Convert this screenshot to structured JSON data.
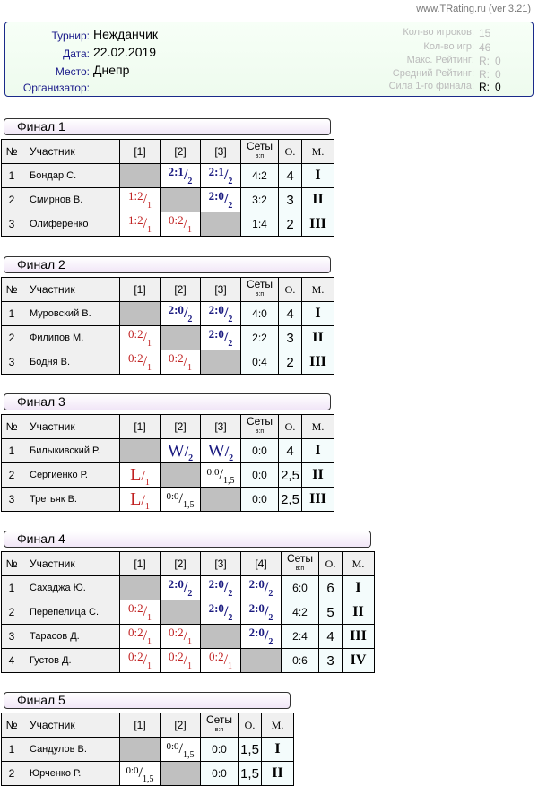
{
  "version": "www.TRating.ru (ver 3.21)",
  "info": {
    "left": [
      {
        "label": "Турнир:",
        "value": "Нежданчик"
      },
      {
        "label": "Дата:",
        "value": "22.02.2019"
      },
      {
        "label": "Место:",
        "value": "Днепр"
      },
      {
        "label": "Организатор:",
        "value": ""
      }
    ],
    "right": [
      {
        "label": "Кол-во игроков:",
        "value": "15"
      },
      {
        "label": "Кол-во игр:",
        "value": "46"
      },
      {
        "label": "Макс. Рейтинг:",
        "value": "R:",
        "value2": "0"
      },
      {
        "label": "Средний Рейтинг:",
        "value": "R:",
        "value2": "0"
      },
      {
        "label": "Сила 1-го финала:",
        "value": "R:",
        "value2": "0"
      }
    ]
  },
  "headers": {
    "num": "№",
    "name": "Участник",
    "sets": "Сеты",
    "sets_sub": "в:п",
    "points": "О.",
    "place": "М."
  },
  "finals": [
    {
      "title": "Финал 1",
      "players": [
        {
          "n": "1",
          "name": "Бондар С.",
          "cells": [
            null,
            {
              "s": "2:1",
              "p": "2",
              "t": "win"
            },
            {
              "s": "2:1",
              "p": "2",
              "t": "win"
            }
          ],
          "sets": "4:2",
          "pts": "4",
          "place": "I"
        },
        {
          "n": "2",
          "name": "Смирнов В.",
          "cells": [
            {
              "s": "1:2",
              "p": "1",
              "t": "loss"
            },
            null,
            {
              "s": "2:0",
              "p": "2",
              "t": "win"
            }
          ],
          "sets": "3:2",
          "pts": "3",
          "place": "II"
        },
        {
          "n": "3",
          "name": "Олиференко",
          "cells": [
            {
              "s": "1:2",
              "p": "1",
              "t": "loss"
            },
            {
              "s": "0:2",
              "p": "1",
              "t": "loss"
            },
            null
          ],
          "sets": "1:4",
          "pts": "2",
          "place": "III"
        }
      ]
    },
    {
      "title": "Финал 2",
      "players": [
        {
          "n": "1",
          "name": "Муровский В.",
          "cells": [
            null,
            {
              "s": "2:0",
              "p": "2",
              "t": "win"
            },
            {
              "s": "2:0",
              "p": "2",
              "t": "win"
            }
          ],
          "sets": "4:0",
          "pts": "4",
          "place": "I"
        },
        {
          "n": "2",
          "name": "Филипов М.",
          "cells": [
            {
              "s": "0:2",
              "p": "1",
              "t": "loss"
            },
            null,
            {
              "s": "2:0",
              "p": "2",
              "t": "win"
            }
          ],
          "sets": "2:2",
          "pts": "3",
          "place": "II"
        },
        {
          "n": "3",
          "name": "Бодня В.",
          "cells": [
            {
              "s": "0:2",
              "p": "1",
              "t": "loss"
            },
            {
              "s": "0:2",
              "p": "1",
              "t": "loss"
            },
            null
          ],
          "sets": "0:4",
          "pts": "2",
          "place": "III"
        }
      ]
    },
    {
      "title": "Финал 3",
      "players": [
        {
          "n": "1",
          "name": "Билыкивский Р.",
          "cells": [
            null,
            {
              "s": "W",
              "p": "2",
              "t": "win"
            },
            {
              "s": "W",
              "p": "2",
              "t": "win"
            }
          ],
          "sets": "0:0",
          "pts": "4",
          "place": "I"
        },
        {
          "n": "2",
          "name": "Сергиенко Р.",
          "cells": [
            {
              "s": "L",
              "p": "1",
              "t": "loss"
            },
            null,
            {
              "s": "0:0",
              "p": "1,5",
              "t": "draw"
            }
          ],
          "sets": "0:0",
          "pts": "2,5",
          "place": "II"
        },
        {
          "n": "3",
          "name": "Третьяк В.",
          "cells": [
            {
              "s": "L",
              "p": "1",
              "t": "loss"
            },
            {
              "s": "0:0",
              "p": "1,5",
              "t": "draw"
            },
            null
          ],
          "sets": "0:0",
          "pts": "2,5",
          "place": "III"
        }
      ]
    },
    {
      "title": "Финал 4",
      "players": [
        {
          "n": "1",
          "name": "Сахаджа Ю.",
          "cells": [
            null,
            {
              "s": "2:0",
              "p": "2",
              "t": "win"
            },
            {
              "s": "2:0",
              "p": "2",
              "t": "win"
            },
            {
              "s": "2:0",
              "p": "2",
              "t": "win"
            }
          ],
          "sets": "6:0",
          "pts": "6",
          "place": "I"
        },
        {
          "n": "2",
          "name": "Перепелица С.",
          "cells": [
            {
              "s": "0:2",
              "p": "1",
              "t": "loss"
            },
            null,
            {
              "s": "2:0",
              "p": "2",
              "t": "win"
            },
            {
              "s": "2:0",
              "p": "2",
              "t": "win"
            }
          ],
          "sets": "4:2",
          "pts": "5",
          "place": "II"
        },
        {
          "n": "3",
          "name": "Тарасов Д.",
          "cells": [
            {
              "s": "0:2",
              "p": "1",
              "t": "loss"
            },
            {
              "s": "0:2",
              "p": "1",
              "t": "loss"
            },
            null,
            {
              "s": "2:0",
              "p": "2",
              "t": "win"
            }
          ],
          "sets": "2:4",
          "pts": "4",
          "place": "III"
        },
        {
          "n": "4",
          "name": "Густов Д.",
          "cells": [
            {
              "s": "0:2",
              "p": "1",
              "t": "loss"
            },
            {
              "s": "0:2",
              "p": "1",
              "t": "loss"
            },
            {
              "s": "0:2",
              "p": "1",
              "t": "loss"
            },
            null
          ],
          "sets": "0:6",
          "pts": "3",
          "place": "IV"
        }
      ]
    },
    {
      "title": "Финал 5",
      "players": [
        {
          "n": "1",
          "name": "Сандулов В.",
          "cells": [
            null,
            {
              "s": "0:0",
              "p": "1,5",
              "t": "draw"
            }
          ],
          "sets": "0:0",
          "pts": "1,5",
          "place": "I"
        },
        {
          "n": "2",
          "name": "Юрченко Р.",
          "cells": [
            {
              "s": "0:0",
              "p": "1,5",
              "t": "draw"
            },
            null
          ],
          "sets": "0:0",
          "pts": "1,5",
          "place": "II"
        }
      ]
    }
  ]
}
